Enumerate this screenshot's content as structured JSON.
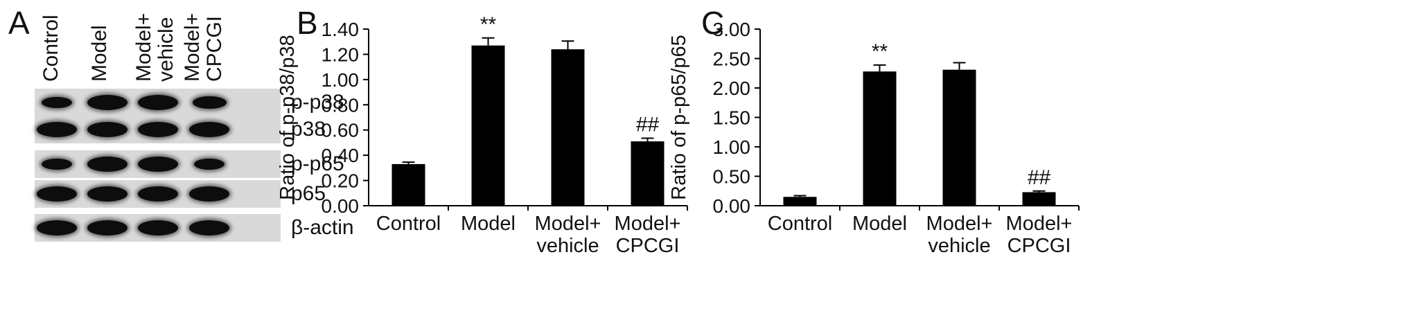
{
  "panels": {
    "a": "A",
    "b": "B",
    "c": "C"
  },
  "western_blot": {
    "lanes": [
      "Control",
      "Model",
      "Model+\nvehicle",
      "Model+\nCPCGI"
    ],
    "proteins": [
      "p-p38",
      "p38",
      "p-p65",
      "p65",
      "β-actin"
    ],
    "band_intensity": [
      [
        0.55,
        1.0,
        1.0,
        0.7
      ],
      [
        1.0,
        1.0,
        1.0,
        1.0
      ],
      [
        0.55,
        1.0,
        1.0,
        0.55
      ],
      [
        1.0,
        1.0,
        1.0,
        1.0
      ],
      [
        1.0,
        1.0,
        1.0,
        1.0
      ]
    ]
  },
  "chart_data": [
    {
      "type": "bar",
      "panel": "B",
      "categories": [
        "Control",
        "Model",
        "Model+\nvehicle",
        "Model+\nCPCGI"
      ],
      "values": [
        0.33,
        1.27,
        1.24,
        0.51
      ],
      "errors": [
        0.015,
        0.06,
        0.065,
        0.025
      ],
      "annotations": [
        "",
        "**",
        "",
        "##"
      ],
      "ylabel": "Ratio of p-p38/p38",
      "xlabel": "",
      "ylim": [
        0,
        1.4
      ],
      "yticks": [
        "0.00",
        "0.20",
        "0.40",
        "0.60",
        "0.80",
        "1.00",
        "1.20",
        "1.40"
      ],
      "bar_color": "#000000",
      "grid": false
    },
    {
      "type": "bar",
      "panel": "C",
      "categories": [
        "Control",
        "Model",
        "Model+\nvehicle",
        "Model+\nCPCGI"
      ],
      "values": [
        0.15,
        2.28,
        2.31,
        0.23
      ],
      "errors": [
        0.02,
        0.11,
        0.12,
        0.02
      ],
      "annotations": [
        "",
        "**",
        "",
        "##"
      ],
      "ylabel": "Ratio of p-p65/p65",
      "xlabel": "",
      "ylim": [
        0,
        3.0
      ],
      "yticks": [
        "0.00",
        "0.50",
        "1.00",
        "1.50",
        "2.00",
        "2.50",
        "3.00"
      ],
      "bar_color": "#000000",
      "grid": false
    }
  ]
}
